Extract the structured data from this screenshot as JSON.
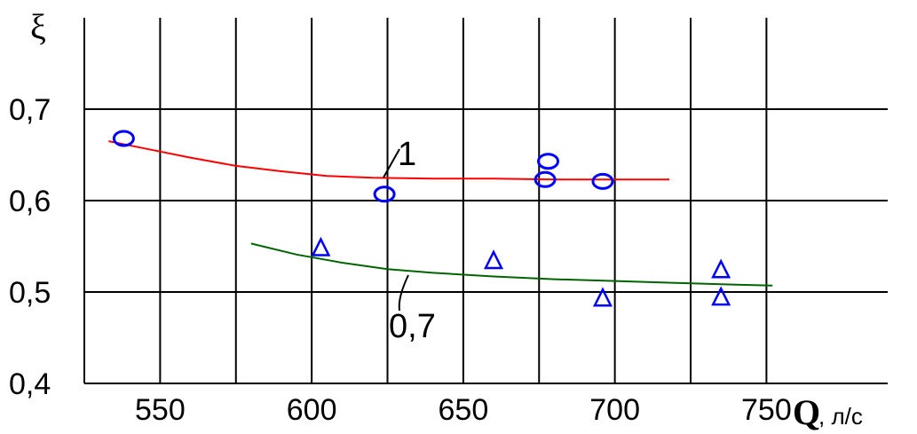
{
  "chart_data": {
    "type": "scatter",
    "title": "",
    "xlabel": "Q",
    "xunit": ", л/с",
    "ylabel": "ξ",
    "xlim": [
      525,
      790
    ],
    "ylim": [
      0.4,
      0.8
    ],
    "xticks": [
      550,
      600,
      650,
      700,
      750
    ],
    "xtick_labels": [
      "550",
      "600",
      "650",
      "700",
      "750"
    ],
    "xgrid": [
      550,
      575,
      600,
      625,
      650,
      675,
      700,
      725,
      750
    ],
    "yticks": [
      0.4,
      0.5,
      0.6,
      0.7
    ],
    "ytick_labels": [
      "0,4",
      "0,5",
      "0,6",
      "0,7"
    ],
    "grid": true,
    "series": [
      {
        "name": "1",
        "marker": "circle",
        "marker_color": "#0000ff",
        "points": [
          {
            "x": 538,
            "y": 0.668
          },
          {
            "x": 624,
            "y": 0.607
          },
          {
            "x": 678,
            "y": 0.643
          },
          {
            "x": 677,
            "y": 0.623
          },
          {
            "x": 696,
            "y": 0.621
          }
        ],
        "fit_color": "#ff0000",
        "fit": [
          {
            "x": 533,
            "y": 0.665
          },
          {
            "x": 545,
            "y": 0.657
          },
          {
            "x": 560,
            "y": 0.647
          },
          {
            "x": 575,
            "y": 0.638
          },
          {
            "x": 590,
            "y": 0.632
          },
          {
            "x": 605,
            "y": 0.627
          },
          {
            "x": 620,
            "y": 0.625
          },
          {
            "x": 640,
            "y": 0.624
          },
          {
            "x": 660,
            "y": 0.624
          },
          {
            "x": 680,
            "y": 0.623
          },
          {
            "x": 700,
            "y": 0.623
          },
          {
            "x": 718,
            "y": 0.623
          }
        ]
      },
      {
        "name": "0,7",
        "marker": "triangle",
        "marker_color": "#0000ff",
        "points": [
          {
            "x": 603,
            "y": 0.548
          },
          {
            "x": 660,
            "y": 0.534
          },
          {
            "x": 696,
            "y": 0.493
          },
          {
            "x": 735,
            "y": 0.524
          },
          {
            "x": 735,
            "y": 0.494
          }
        ],
        "fit_color": "#006400",
        "fit": [
          {
            "x": 580,
            "y": 0.553
          },
          {
            "x": 595,
            "y": 0.541
          },
          {
            "x": 610,
            "y": 0.532
          },
          {
            "x": 625,
            "y": 0.525
          },
          {
            "x": 640,
            "y": 0.521
          },
          {
            "x": 660,
            "y": 0.517
          },
          {
            "x": 680,
            "y": 0.514
          },
          {
            "x": 700,
            "y": 0.512
          },
          {
            "x": 720,
            "y": 0.51
          },
          {
            "x": 740,
            "y": 0.508
          },
          {
            "x": 752,
            "y": 0.507
          }
        ]
      }
    ],
    "annotations": [
      {
        "text": "1",
        "series": 0
      },
      {
        "text": "0,7",
        "series": 1
      }
    ],
    "line_color": "#000000"
  }
}
